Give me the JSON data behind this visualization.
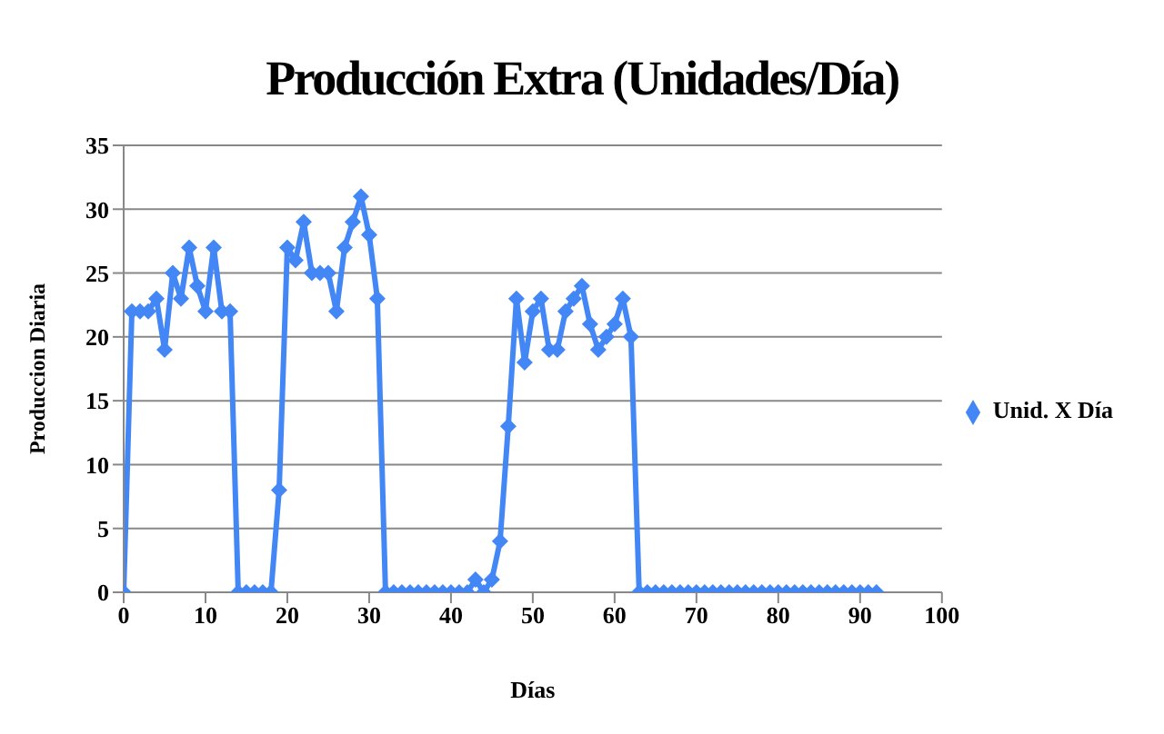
{
  "chart_data": {
    "type": "line",
    "title": "Producción Extra (Unidades/Día)",
    "xlabel": "Días",
    "ylabel": "Produccion  Diaria",
    "x": [
      0,
      1,
      2,
      3,
      4,
      5,
      6,
      7,
      8,
      9,
      10,
      11,
      12,
      13,
      14,
      15,
      16,
      17,
      18,
      19,
      20,
      21,
      22,
      23,
      24,
      25,
      26,
      27,
      28,
      29,
      30,
      31,
      32,
      33,
      34,
      35,
      36,
      37,
      38,
      39,
      40,
      41,
      42,
      43,
      44,
      45,
      46,
      47,
      48,
      49,
      50,
      51,
      52,
      53,
      54,
      55,
      56,
      57,
      58,
      59,
      60,
      61,
      62,
      63,
      64,
      65,
      66,
      67,
      68,
      69,
      70,
      71,
      72,
      73,
      74,
      75,
      76,
      77,
      78,
      79,
      80,
      81,
      82,
      83,
      84,
      85,
      86,
      87,
      88,
      89,
      90,
      91,
      92
    ],
    "series": [
      {
        "name": "Unid. X Día",
        "color": "#4287f5",
        "values": [
          0,
          22,
          22,
          22,
          23,
          19,
          25,
          23,
          27,
          24,
          22,
          27,
          22,
          22,
          0,
          0,
          0,
          0,
          0,
          8,
          27,
          26,
          29,
          25,
          25,
          25,
          22,
          27,
          29,
          31,
          28,
          23,
          0,
          0,
          0,
          0,
          0,
          0,
          0,
          0,
          0,
          0,
          0,
          1,
          0,
          1,
          4,
          13,
          23,
          18,
          22,
          23,
          19,
          19,
          22,
          23,
          24,
          21,
          19,
          20,
          21,
          23,
          20,
          0,
          0,
          0,
          0,
          0,
          0,
          0,
          0,
          0,
          0,
          0,
          0,
          0,
          0,
          0,
          0,
          0,
          0,
          0,
          0,
          0,
          0,
          0,
          0,
          0,
          0,
          0,
          0,
          0,
          0
        ]
      }
    ],
    "xlim": [
      0,
      100
    ],
    "xticks": [
      0,
      10,
      20,
      30,
      40,
      50,
      60,
      70,
      80,
      90,
      100
    ],
    "ylim": [
      0,
      35
    ],
    "yticks": [
      0,
      5,
      10,
      15,
      20,
      25,
      30,
      35
    ],
    "grid": "y",
    "legend": "right",
    "marker": "diamond",
    "line_style": "solid"
  }
}
